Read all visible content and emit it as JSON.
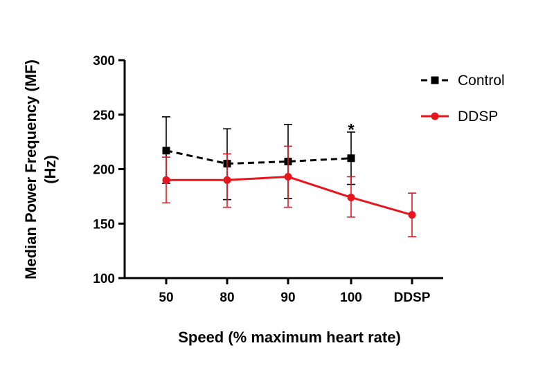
{
  "chart_data": {
    "type": "line",
    "title": "",
    "xlabel": "Speed (% maximum heart rate)",
    "ylabel_line1": "Median Power Frequency (MF)",
    "ylabel_line2": "(Hz)",
    "categories": [
      "50",
      "80",
      "90",
      "100",
      "DDSP"
    ],
    "ylim": [
      100,
      300
    ],
    "yticks": [
      100,
      150,
      200,
      250,
      300
    ],
    "grid": false,
    "legend_position": "top-right",
    "series": [
      {
        "name": "Control",
        "color": "#000000",
        "line_style": "dashed",
        "marker": "square",
        "values": [
          217,
          205,
          207,
          210,
          null
        ],
        "err_upper": [
          248,
          237,
          241,
          234,
          null
        ],
        "err_lower": [
          187,
          172,
          173,
          186,
          null
        ]
      },
      {
        "name": "DDSP",
        "color": "#e8141e",
        "line_style": "solid",
        "marker": "circle",
        "values": [
          190,
          190,
          193,
          174,
          158
        ],
        "err_upper": [
          211,
          214,
          221,
          193,
          178
        ],
        "err_lower": [
          169,
          165,
          165,
          156,
          138
        ]
      }
    ],
    "annotations": [
      {
        "text": "*",
        "category": "100",
        "value": 242
      }
    ]
  }
}
